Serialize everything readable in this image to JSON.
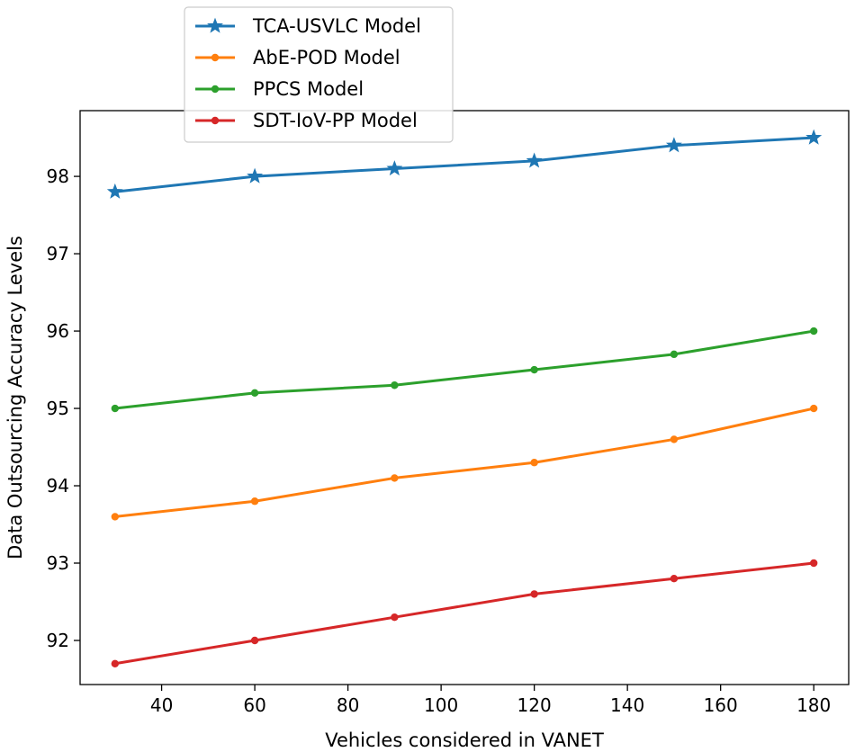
{
  "chart_data": {
    "type": "line",
    "title": "",
    "xlabel": "Vehicles considered in VANET",
    "ylabel": "Data Outsourcing Accuracy Levels",
    "x": [
      30,
      60,
      90,
      120,
      150,
      180
    ],
    "xlim": [
      22.5,
      187.5
    ],
    "ylim": [
      91.43,
      98.85
    ],
    "xticks": [
      40,
      60,
      80,
      100,
      120,
      140,
      160,
      180
    ],
    "xtick_labels": [
      "40",
      "60",
      "80",
      "100",
      "120",
      "140",
      "160",
      "180"
    ],
    "yticks": [
      92,
      93,
      94,
      95,
      96,
      97,
      98
    ],
    "ytick_labels": [
      "92",
      "93",
      "94",
      "95",
      "96",
      "97",
      "98"
    ],
    "grid": false,
    "legend_position": "top-left",
    "series": [
      {
        "name": "TCA-USVLC Model",
        "color": "#1f77b4",
        "marker": "star",
        "values": [
          97.8,
          98.0,
          98.1,
          98.2,
          98.4,
          98.5
        ]
      },
      {
        "name": "AbE-POD Model",
        "color": "#ff7f0e",
        "marker": "circle",
        "values": [
          93.6,
          93.8,
          94.1,
          94.3,
          94.6,
          95.0
        ]
      },
      {
        "name": "PPCS Model",
        "color": "#2ca02c",
        "marker": "circle",
        "values": [
          95.0,
          95.2,
          95.3,
          95.5,
          95.7,
          96.0
        ]
      },
      {
        "name": "SDT-IoV-PP Model",
        "color": "#d62728",
        "marker": "circle",
        "values": [
          91.7,
          92.0,
          92.3,
          92.6,
          92.8,
          93.0
        ]
      }
    ]
  }
}
